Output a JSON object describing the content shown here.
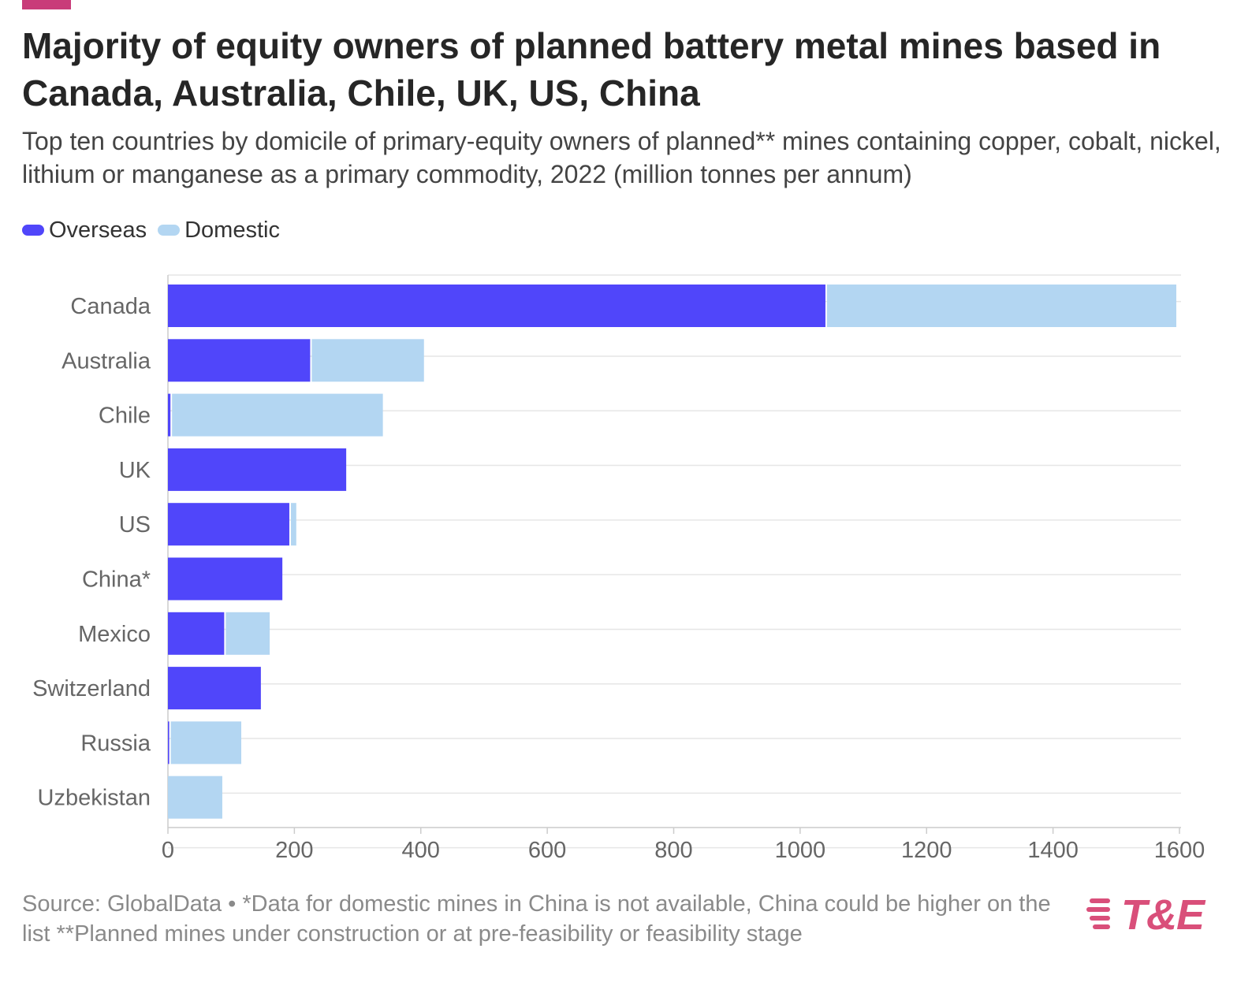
{
  "header": {
    "title": "Majority of equity owners of planned battery metal mines based in Canada, Australia, Chile, UK, US, China",
    "subtitle": "Top ten countries by domicile of primary-equity owners of planned** mines containing copper, cobalt, nickel, lithium or manganese as a primary commodity, 2022 (million tonnes per annum)"
  },
  "legend": {
    "overseas_label": "Overseas",
    "domestic_label": "Domestic"
  },
  "colors": {
    "overseas": "#5046fa",
    "domestic": "#b3d6f2",
    "accent": "#c93c79",
    "logo": "#d94f7a",
    "grid": "#e6e6e6",
    "axis_text": "#666666"
  },
  "chart_data": {
    "type": "bar",
    "orientation": "horizontal",
    "stacked": true,
    "categories": [
      "Canada",
      "Australia",
      "Chile",
      "UK",
      "US",
      "China*",
      "Mexico",
      "Switzerland",
      "Russia",
      "Uzbekistan"
    ],
    "series": [
      {
        "name": "Overseas",
        "values": [
          1040,
          225,
          4,
          282,
          192,
          181,
          89,
          147,
          2,
          0
        ]
      },
      {
        "name": "Domestic",
        "values": [
          555,
          180,
          336,
          0,
          11,
          0,
          72,
          0,
          114,
          86
        ]
      }
    ],
    "xlim": [
      0,
      1600
    ],
    "xticks": [
      0,
      200,
      400,
      600,
      800,
      1000,
      1200,
      1400,
      1600
    ],
    "title": "Majority of equity owners of planned battery metal mines based in Canada, Australia, Chile, UK, US, China",
    "xlabel": "",
    "ylabel": "",
    "grid": true,
    "legend_position": "top-left"
  },
  "footer": {
    "source": "Source: GlobalData • *Data for domestic mines in China is not available, China could be higher on the list **Planned mines under construction or at pre-feasibility or feasibility stage",
    "logo_text": "T&E"
  }
}
